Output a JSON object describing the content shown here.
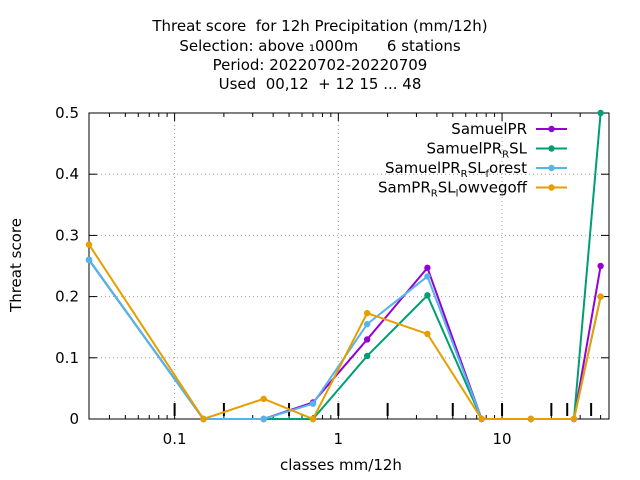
{
  "chart_data": {
    "type": "line",
    "title_lines": [
      "Threat score  for 12h Precipitation (mm/12h)",
      "Selection: above ₁000m      6 stations",
      "Period: 20220702-20220709",
      "Used  00,12  + 12 15 ... 48"
    ],
    "xlabel": "classes mm/12h",
    "ylabel": "Threat score",
    "x_scale": "log",
    "xlim": [
      0.03,
      45
    ],
    "ylim": [
      0,
      0.5
    ],
    "x_ticks": [
      0.1,
      1,
      10
    ],
    "x_tick_labels": [
      "0.1",
      "1",
      "10"
    ],
    "y_ticks": [
      0,
      0.1,
      0.2,
      0.3,
      0.4,
      0.5
    ],
    "y_tick_labels": [
      "0",
      "0.1",
      "0.2",
      "0.3",
      "0.4",
      "0.5"
    ],
    "grid": true,
    "legend_position": "top-right",
    "x": [
      0.03,
      0.15,
      0.35,
      0.7,
      1.5,
      3.5,
      7.5,
      15,
      27.5,
      40
    ],
    "series": [
      {
        "name": "SamuelPR",
        "legend_base": "SamuelPR",
        "legend_sub": "",
        "legend_tail": "",
        "color": "#9400d3",
        "values": [
          0.26,
          0.0,
          0.0,
          0.027,
          0.13,
          0.247,
          0.0,
          0.0,
          0.0,
          0.25
        ]
      },
      {
        "name": "SamuelPR_RSL",
        "legend_base": "SamuelPR",
        "legend_sub": "R",
        "legend_tail": "SL",
        "color": "#009e73",
        "values": [
          0.26,
          0.0,
          0.0,
          0.0,
          0.103,
          0.202,
          0.0,
          0.0,
          0.0,
          0.5
        ]
      },
      {
        "name": "SamuelPR_RSL_forest",
        "legend_base": "SamuelPR",
        "legend_sub": "R",
        "legend_tail": "SL",
        "legend_sub2": "f",
        "legend_tail2": "orest",
        "color": "#56b4e9",
        "values": [
          0.26,
          0.0,
          0.0,
          0.025,
          0.155,
          0.233,
          0.0,
          0.0,
          0.0,
          0.2
        ]
      },
      {
        "name": "SamPR_RSL_lowvegoff",
        "legend_base": "SamPR",
        "legend_sub": "R",
        "legend_tail": "SL",
        "legend_sub2": "l",
        "legend_tail2": "owvegoff",
        "color": "#e69f00",
        "values": [
          0.285,
          0.0,
          0.033,
          0.0,
          0.173,
          0.139,
          0.0,
          0.0,
          0.0,
          0.2
        ]
      }
    ],
    "class_boundaries": [
      0.1,
      0.2,
      0.5,
      1,
      2,
      5,
      10,
      20,
      25,
      35
    ]
  }
}
